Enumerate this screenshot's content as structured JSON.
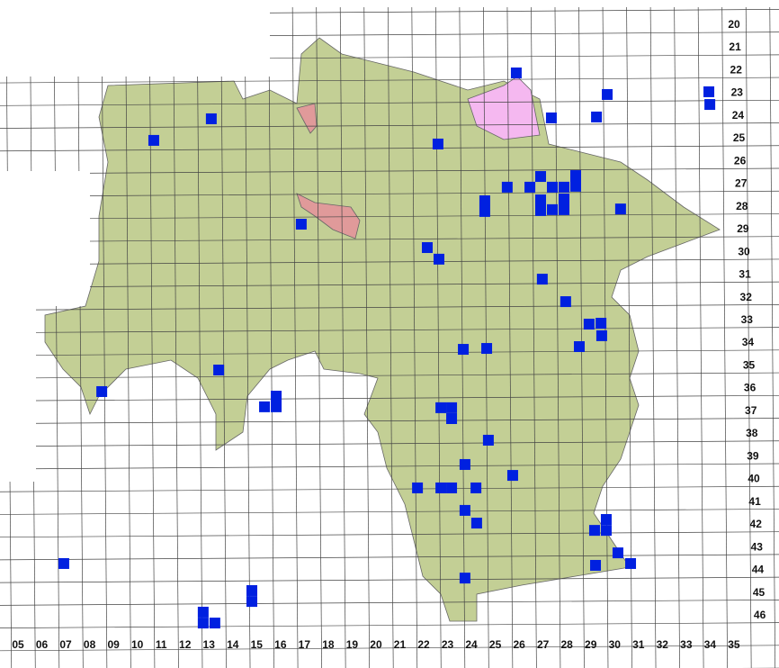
{
  "map": {
    "type": "grid-distribution-map",
    "column_labels": [
      "05",
      "06",
      "07",
      "08",
      "09",
      "10",
      "11",
      "12",
      "13",
      "14",
      "15",
      "16",
      "17",
      "18",
      "19",
      "20",
      "21",
      "22",
      "23",
      "24",
      "25",
      "26",
      "27",
      "28",
      "29",
      "30",
      "31",
      "32",
      "33",
      "34",
      "35"
    ],
    "row_labels": [
      "20",
      "21",
      "22",
      "23",
      "24",
      "25",
      "26",
      "27",
      "28",
      "29",
      "30",
      "31",
      "32",
      "33",
      "34",
      "35",
      "36",
      "37",
      "38",
      "39",
      "40",
      "41",
      "42",
      "43",
      "44",
      "45",
      "46"
    ],
    "colors": {
      "region_main": "#c3cf95",
      "region_hamburg": "#f5b8f0",
      "region_bremen": "#e09a9a",
      "record_marker": "#0020e0",
      "grid": "#444444",
      "border": "#777777"
    },
    "records": [
      [
        25.88,
        22.14
      ],
      [
        29.69,
        23.09
      ],
      [
        33.95,
        22.97
      ],
      [
        33.99,
        23.53
      ],
      [
        27.35,
        24.12
      ],
      [
        29.24,
        24.08
      ],
      [
        13.1,
        24.16
      ],
      [
        10.69,
        25.11
      ],
      [
        22.6,
        25.27
      ],
      [
        25.5,
        27.17
      ],
      [
        26.45,
        27.17
      ],
      [
        26.9,
        26.7
      ],
      [
        27.39,
        27.17
      ],
      [
        27.88,
        27.17
      ],
      [
        28.37,
        26.66
      ],
      [
        28.37,
        27.13
      ],
      [
        24.56,
        27.77
      ],
      [
        24.56,
        28.24
      ],
      [
        26.9,
        27.73
      ],
      [
        27.88,
        27.69
      ],
      [
        26.9,
        28.2
      ],
      [
        27.39,
        28.16
      ],
      [
        27.88,
        28.16
      ],
      [
        30.25,
        28.13
      ],
      [
        16.87,
        28.8
      ],
      [
        22.15,
        29.83
      ],
      [
        22.64,
        30.34
      ],
      [
        26.97,
        31.22
      ],
      [
        27.95,
        32.21
      ],
      [
        28.93,
        33.2
      ],
      [
        29.43,
        33.16
      ],
      [
        29.46,
        33.71
      ],
      [
        28.52,
        34.19
      ],
      [
        23.66,
        34.31
      ],
      [
        24.64,
        34.27
      ],
      [
        13.41,
        35.22
      ],
      [
        8.51,
        36.17
      ],
      [
        15.82,
        36.37
      ],
      [
        15.33,
        36.84
      ],
      [
        15.82,
        36.84
      ],
      [
        22.72,
        36.88
      ],
      [
        23.17,
        36.88
      ],
      [
        23.17,
        37.36
      ],
      [
        24.71,
        38.31
      ],
      [
        23.73,
        39.38
      ],
      [
        25.73,
        39.86
      ],
      [
        21.74,
        40.41
      ],
      [
        22.72,
        40.41
      ],
      [
        23.17,
        40.41
      ],
      [
        24.19,
        40.41
      ],
      [
        23.73,
        41.4
      ],
      [
        24.22,
        41.96
      ],
      [
        29.65,
        41.8
      ],
      [
        29.16,
        42.28
      ],
      [
        29.65,
        42.28
      ],
      [
        30.14,
        43.27
      ],
      [
        30.67,
        43.74
      ],
      [
        29.2,
        43.82
      ],
      [
        6.92,
        43.74
      ],
      [
        23.73,
        44.38
      ],
      [
        14.8,
        44.93
      ],
      [
        14.8,
        45.41
      ],
      [
        12.76,
        45.88
      ],
      [
        12.76,
        46.36
      ],
      [
        13.25,
        46.36
      ]
    ]
  }
}
